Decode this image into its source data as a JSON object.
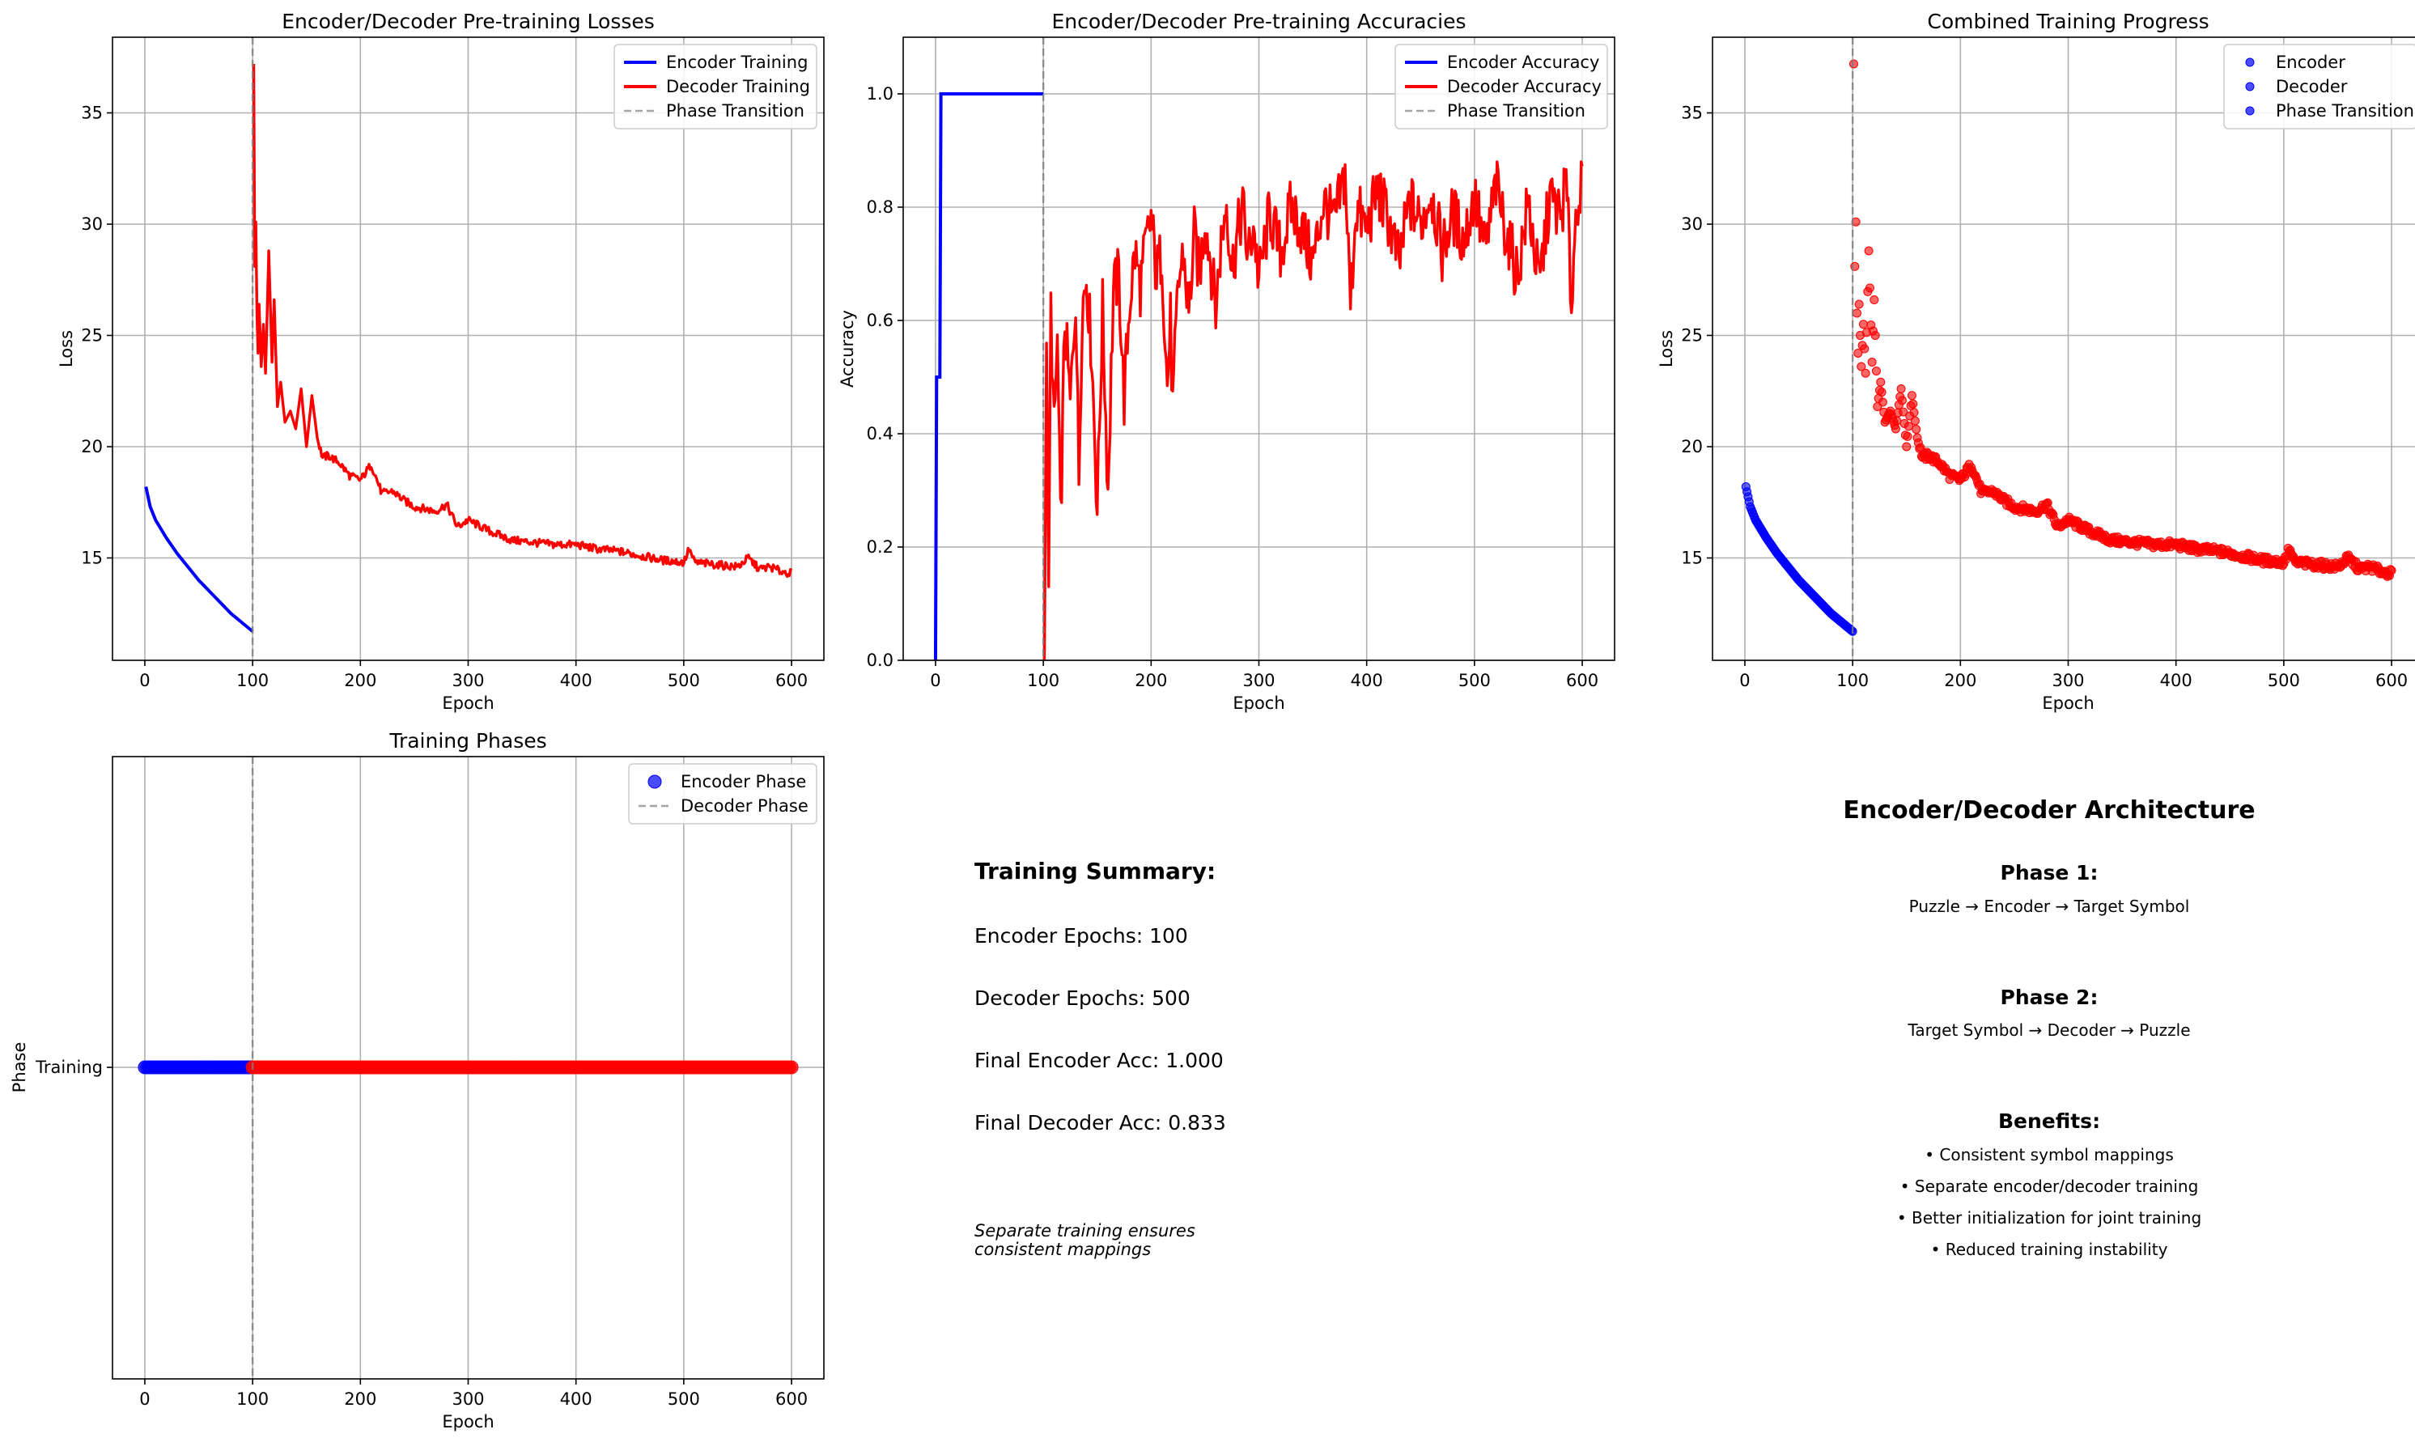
{
  "chart_data": [
    {
      "type": "line",
      "title": "Encoder/Decoder Pre-training Losses",
      "xlabel": "Epoch",
      "ylabel": "Loss",
      "xlim": [
        -30,
        630
      ],
      "ylim": [
        10.4,
        38.4
      ],
      "xticks": [
        0,
        100,
        200,
        300,
        400,
        500,
        600
      ],
      "yticks": [
        15,
        20,
        25,
        30,
        35
      ],
      "grid": true,
      "legend_position": "top-right",
      "series": [
        {
          "name": "Encoder Training",
          "color": "#0000ff",
          "x": [
            1,
            5,
            10,
            20,
            30,
            40,
            50,
            60,
            70,
            80,
            90,
            100
          ],
          "y": [
            18.2,
            17.3,
            16.7,
            15.9,
            15.2,
            14.6,
            14.0,
            13.5,
            13.0,
            12.5,
            12.1,
            11.7
          ]
        },
        {
          "name": "Decoder Training",
          "color": "#ff0000",
          "x": [
            101,
            102,
            103,
            104,
            105,
            106,
            108,
            110,
            112,
            115,
            118,
            120,
            123,
            126,
            130,
            135,
            140,
            145,
            150,
            155,
            160,
            165,
            170,
            180,
            190,
            200,
            210,
            220,
            230,
            240,
            250,
            260,
            270,
            280,
            290,
            300,
            320,
            340,
            360,
            380,
            400,
            420,
            440,
            460,
            480,
            500,
            505,
            510,
            530,
            550,
            560,
            570,
            580,
            590,
            600
          ],
          "y": [
            37.2,
            28.1,
            30.1,
            26.0,
            24.2,
            26.4,
            23.6,
            25.5,
            23.3,
            28.8,
            23.8,
            26.6,
            21.8,
            22.9,
            21.1,
            21.6,
            20.8,
            22.6,
            20.0,
            22.3,
            20.4,
            19.5,
            19.6,
            19.3,
            18.7,
            18.5,
            19.2,
            17.9,
            18.0,
            17.6,
            17.3,
            17.2,
            17.1,
            17.4,
            16.4,
            16.7,
            16.2,
            15.8,
            15.7,
            15.6,
            15.6,
            15.4,
            15.3,
            15.1,
            14.9,
            14.8,
            15.4,
            14.8,
            14.7,
            14.6,
            15.0,
            14.5,
            14.6,
            14.4,
            14.3
          ]
        },
        {
          "name": "Phase Transition",
          "color": "#808080",
          "style": "dashed",
          "x": [
            100,
            100
          ],
          "y": [
            10.4,
            38.4
          ]
        }
      ]
    },
    {
      "type": "line",
      "title": "Encoder/Decoder Pre-training Accuracies",
      "xlabel": "Epoch",
      "ylabel": "Accuracy",
      "xlim": [
        -30,
        630
      ],
      "ylim": [
        0,
        1.1
      ],
      "xticks": [
        0,
        100,
        200,
        300,
        400,
        500,
        600
      ],
      "yticks": [
        "0.0",
        "0.2",
        "0.4",
        "0.6",
        "0.8",
        "1.0"
      ],
      "grid": true,
      "legend_position": "top-right",
      "series": [
        {
          "name": "Encoder Accuracy",
          "color": "#0000ff",
          "x": [
            0,
            1,
            2,
            3,
            4,
            5,
            100
          ],
          "y": [
            0.0,
            0.5,
            0.5,
            0.5,
            0.5,
            1.0,
            1.0
          ]
        },
        {
          "name": "Decoder Accuracy",
          "color": "#ff0000",
          "x": [
            101,
            103,
            105,
            107,
            110,
            113,
            116,
            120,
            125,
            130,
            133,
            136,
            140,
            145,
            150,
            155,
            160,
            165,
            170,
            175,
            180,
            185,
            190,
            195,
            200,
            205,
            210,
            215,
            218,
            220,
            225,
            230,
            235,
            240,
            245,
            250,
            255,
            260,
            265,
            270,
            275,
            280,
            285,
            290,
            295,
            300,
            310,
            320,
            330,
            340,
            350,
            360,
            370,
            380,
            385,
            390,
            400,
            410,
            420,
            430,
            440,
            450,
            460,
            470,
            480,
            490,
            500,
            510,
            520,
            530,
            540,
            550,
            560,
            570,
            580,
            585,
            590,
            595,
            600
          ],
          "y": [
            0.0,
            0.56,
            0.13,
            0.62,
            0.4,
            0.56,
            0.24,
            0.6,
            0.45,
            0.65,
            0.32,
            0.62,
            0.68,
            0.54,
            0.27,
            0.62,
            0.3,
            0.65,
            0.68,
            0.46,
            0.63,
            0.72,
            0.66,
            0.73,
            0.78,
            0.68,
            0.72,
            0.48,
            0.6,
            0.44,
            0.66,
            0.72,
            0.61,
            0.75,
            0.68,
            0.78,
            0.71,
            0.62,
            0.74,
            0.81,
            0.69,
            0.75,
            0.8,
            0.71,
            0.77,
            0.67,
            0.79,
            0.72,
            0.8,
            0.76,
            0.7,
            0.81,
            0.77,
            0.86,
            0.63,
            0.8,
            0.76,
            0.83,
            0.78,
            0.7,
            0.81,
            0.77,
            0.83,
            0.72,
            0.79,
            0.74,
            0.82,
            0.72,
            0.84,
            0.75,
            0.68,
            0.81,
            0.66,
            0.82,
            0.78,
            0.85,
            0.63,
            0.82,
            0.83
          ]
        },
        {
          "name": "Phase Transition",
          "color": "#808080",
          "style": "dashed",
          "x": [
            100,
            100
          ],
          "y": [
            0,
            1.1
          ]
        }
      ]
    },
    {
      "type": "scatter",
      "title": "Combined Training Progress",
      "xlabel": "Epoch",
      "ylabel": "Loss",
      "xlim": [
        -30,
        630
      ],
      "ylim": [
        10.4,
        38.4
      ],
      "xticks": [
        0,
        100,
        200,
        300,
        400,
        500,
        600
      ],
      "yticks": [
        15,
        20,
        25,
        30,
        35
      ],
      "grid": true,
      "legend_position": "top-right",
      "legend": [
        "Encoder",
        "Decoder",
        "Phase Transition"
      ],
      "series": [
        {
          "name": "Encoder",
          "color": "#0000ff",
          "source": "same values as Encoder Training (one point per epoch 1-100)"
        },
        {
          "name": "Decoder",
          "color": "#ff0000",
          "source": "same values as Decoder Training (one point per epoch 101-600)"
        }
      ],
      "vline": {
        "x": 100,
        "color": "#808080",
        "style": "dashed"
      }
    },
    {
      "type": "scatter",
      "title": "Training Phases",
      "xlabel": "Epoch",
      "ylabel": "Phase",
      "xlim": [
        -30,
        630
      ],
      "xticks": [
        0,
        100,
        200,
        300,
        400,
        500,
        600
      ],
      "ytick_labels": [
        "Training"
      ],
      "grid": true,
      "legend_position": "top-right",
      "legend": [
        "Encoder Phase",
        "Decoder Phase"
      ],
      "series": [
        {
          "name": "Encoder Phase",
          "color": "#0000ff",
          "x_range": [
            0,
            100
          ],
          "y": "Training"
        },
        {
          "name": "Decoder Phase",
          "color": "#ff0000",
          "x_range": [
            100,
            600
          ],
          "y": "Training"
        }
      ],
      "vline": {
        "x": 100,
        "color": "#808080",
        "style": "dashed"
      }
    }
  ],
  "summary": {
    "title": "Training Summary:",
    "lines": [
      "Encoder Epochs: 100",
      "Decoder Epochs: 500",
      "Final Encoder Acc: 1.000",
      "Final Decoder Acc: 0.833"
    ],
    "note": "Separate training ensures\nconsistent mappings"
  },
  "architecture": {
    "title": "Encoder/Decoder Architecture",
    "phase1_title": "Phase 1:",
    "phase1_text": "Puzzle → Encoder → Target Symbol",
    "phase2_title": "Phase 2:",
    "phase2_text": "Target Symbol → Decoder → Puzzle",
    "benefits_title": "Benefits:",
    "benefits": [
      "• Consistent symbol mappings",
      "• Separate encoder/decoder training",
      "• Better initialization for joint training",
      "• Reduced training instability"
    ]
  }
}
